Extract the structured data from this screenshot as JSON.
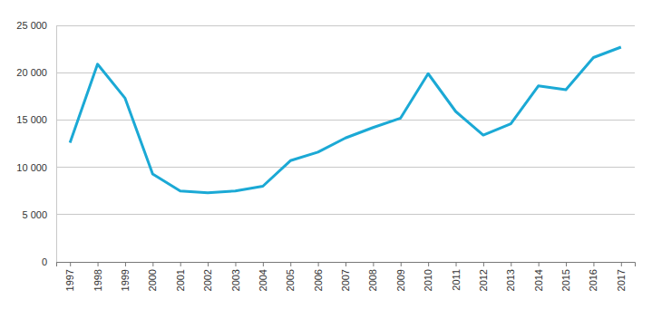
{
  "chart_data": {
    "type": "line",
    "categories": [
      "1997",
      "1998",
      "1999",
      "2000",
      "2001",
      "2002",
      "2003",
      "2004",
      "2005",
      "2006",
      "2007",
      "2008",
      "2009",
      "2010",
      "2011",
      "2012",
      "2013",
      "2014",
      "2015",
      "2016",
      "2017"
    ],
    "values": [
      12600,
      20900,
      17300,
      9300,
      7500,
      7300,
      7500,
      8000,
      10700,
      11600,
      13100,
      14200,
      15200,
      19900,
      15900,
      13400,
      14600,
      18600,
      18200,
      21600,
      22700
    ],
    "color": "#1ba9d5",
    "ylim": [
      0,
      25000
    ],
    "yticks": [
      0,
      {
        "value": 5000,
        "label": "5 000"
      },
      {
        "value": 10000,
        "label": "10 000"
      },
      {
        "value": 15000,
        "label": "15 000"
      },
      {
        "value": 20000,
        "label": "20 000"
      },
      {
        "value": 25000,
        "label": "25 000"
      }
    ],
    "grid": true
  }
}
